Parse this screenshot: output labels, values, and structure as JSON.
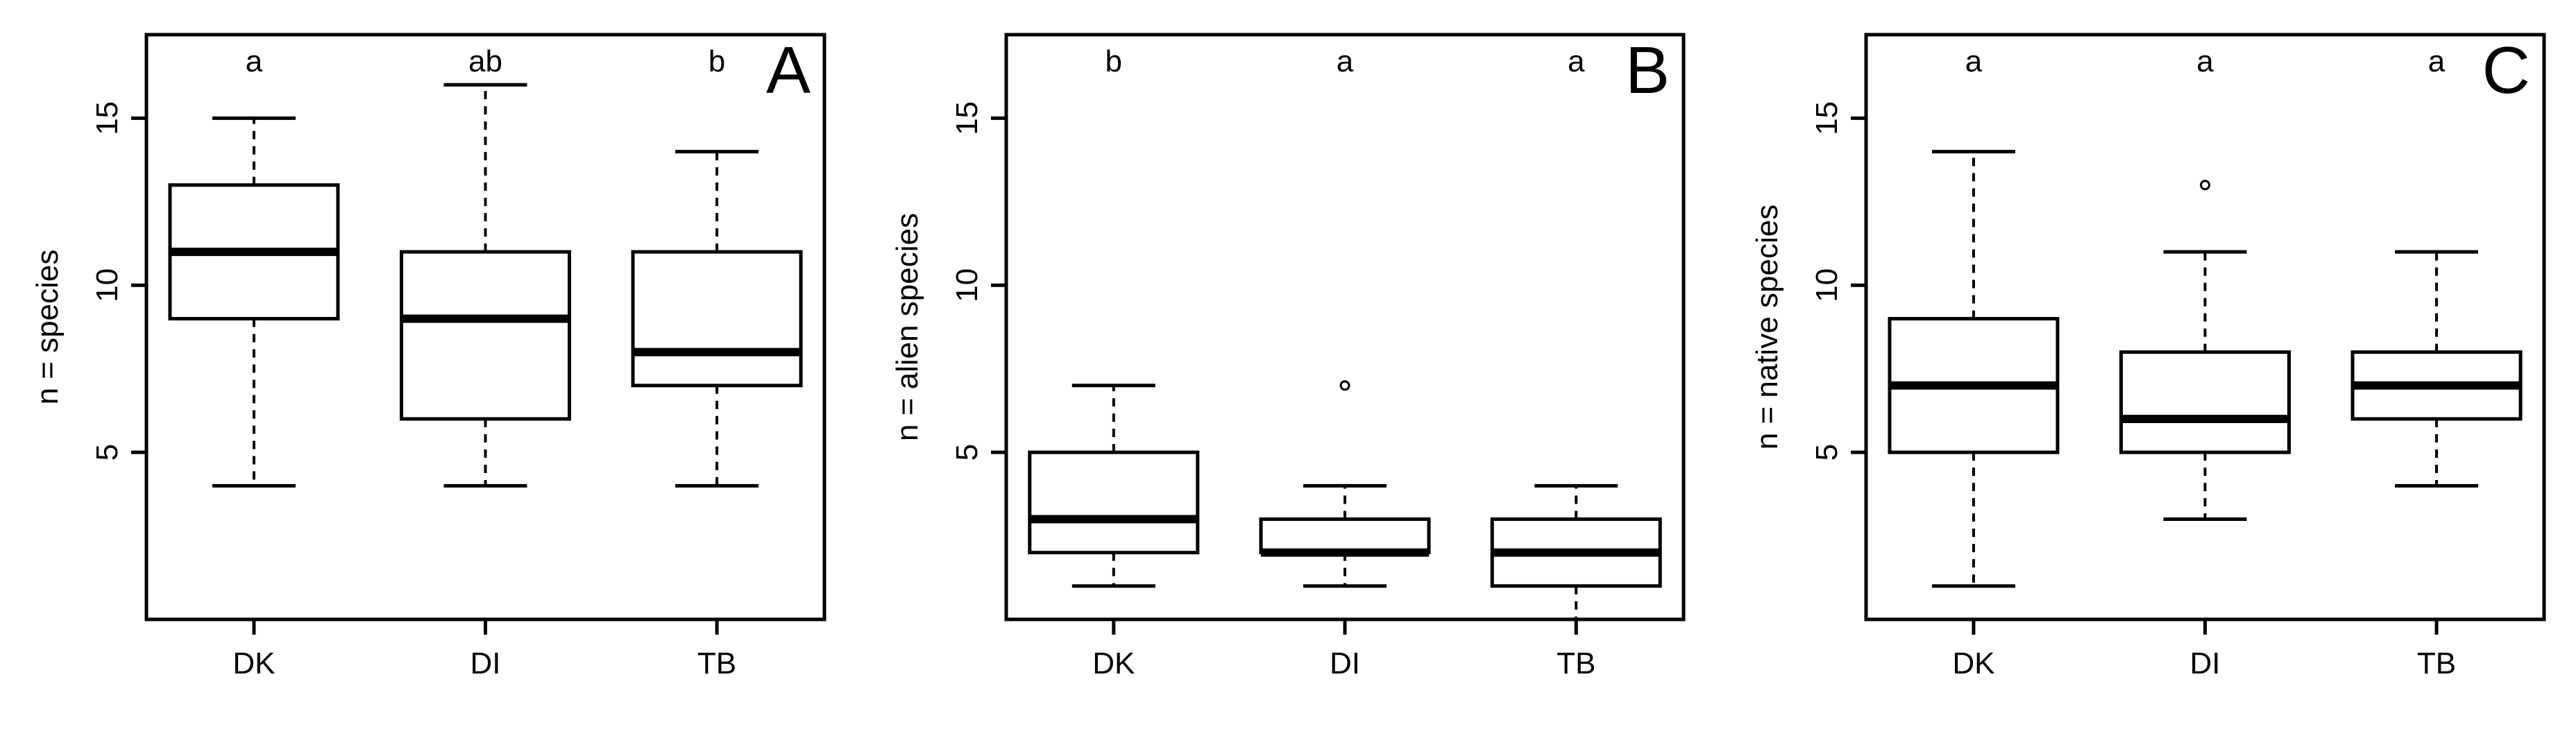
{
  "chart_data": [
    {
      "type": "box",
      "panel_label": "A",
      "ylabel": "n = species",
      "categories": [
        "DK",
        "DI",
        "TB"
      ],
      "ylim": [
        0,
        17.5
      ],
      "yticks": [
        5,
        10,
        15
      ],
      "boxes": [
        {
          "category": "DK",
          "whisker_low": 4,
          "q1": 9,
          "median": 11,
          "q3": 13,
          "whisker_high": 15,
          "outliers": [],
          "letter": "a"
        },
        {
          "category": "DI",
          "whisker_low": 4,
          "q1": 6,
          "median": 9,
          "q3": 11,
          "whisker_high": 16,
          "outliers": [],
          "letter": "ab"
        },
        {
          "category": "TB",
          "whisker_low": 4,
          "q1": 7,
          "median": 8,
          "q3": 11,
          "whisker_high": 14,
          "outliers": [],
          "letter": "b"
        }
      ]
    },
    {
      "type": "box",
      "panel_label": "B",
      "ylabel": "n = alien species",
      "categories": [
        "DK",
        "DI",
        "TB"
      ],
      "ylim": [
        0,
        17.5
      ],
      "yticks": [
        5,
        10,
        15
      ],
      "boxes": [
        {
          "category": "DK",
          "whisker_low": 1,
          "q1": 2,
          "median": 3,
          "q3": 5,
          "whisker_high": 7,
          "outliers": [],
          "letter": "b"
        },
        {
          "category": "DI",
          "whisker_low": 1,
          "q1": 2,
          "median": 2,
          "q3": 3,
          "whisker_high": 4,
          "outliers": [
            7
          ],
          "letter": "a"
        },
        {
          "category": "TB",
          "whisker_low": 0,
          "q1": 1,
          "median": 2,
          "q3": 3,
          "whisker_high": 4,
          "outliers": [],
          "letter": "a"
        }
      ]
    },
    {
      "type": "box",
      "panel_label": "C",
      "ylabel": "n = native species",
      "categories": [
        "DK",
        "DI",
        "TB"
      ],
      "ylim": [
        0,
        17.5
      ],
      "yticks": [
        5,
        10,
        15
      ],
      "boxes": [
        {
          "category": "DK",
          "whisker_low": 1,
          "q1": 5,
          "median": 7,
          "q3": 9,
          "whisker_high": 14,
          "outliers": [],
          "letter": "a"
        },
        {
          "category": "DI",
          "whisker_low": 3,
          "q1": 5,
          "median": 6,
          "q3": 8,
          "whisker_high": 11,
          "outliers": [
            13
          ],
          "letter": "a"
        },
        {
          "category": "TB",
          "whisker_low": 4,
          "q1": 6,
          "median": 7,
          "q3": 8,
          "whisker_high": 11,
          "outliers": [],
          "letter": "a"
        }
      ]
    }
  ]
}
